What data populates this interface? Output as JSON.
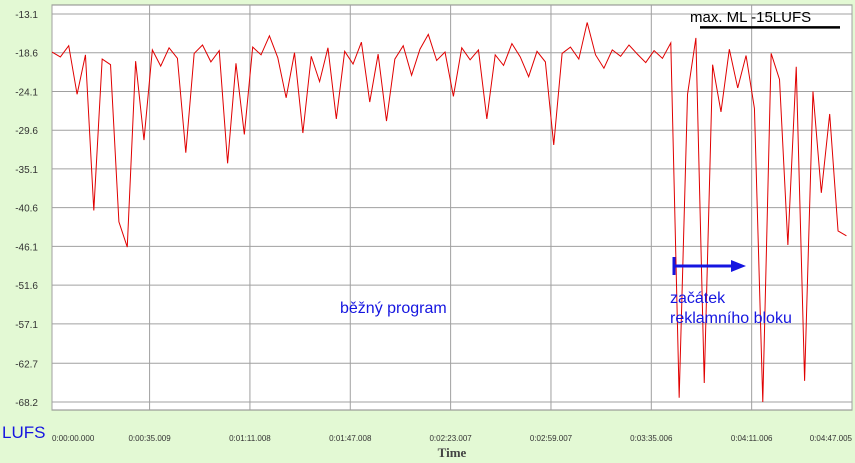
{
  "chart_data": {
    "type": "line",
    "title": "max. ML -15LUFS",
    "x_label": "Time",
    "y_label": "LUFS",
    "max_level": -15,
    "annotations": [
      "běžný program",
      "začátek",
      "reklamního bloku"
    ],
    "x": [
      0,
      3,
      6,
      9,
      12,
      15,
      18,
      21,
      24,
      27,
      30,
      33,
      36,
      39,
      42,
      45,
      48,
      51,
      54,
      57,
      60,
      63,
      66,
      69,
      72,
      75,
      78,
      81,
      84,
      87,
      90,
      93,
      96,
      99,
      102,
      105,
      108,
      111,
      114,
      117,
      120,
      123,
      126,
      129,
      132,
      135,
      138,
      141,
      144,
      147,
      150,
      153,
      156,
      159,
      162,
      165,
      168,
      171,
      174,
      177,
      180,
      183,
      186,
      189,
      192,
      195,
      198,
      201,
      204,
      207,
      210,
      213,
      216,
      219,
      222,
      225,
      228,
      231,
      234,
      237,
      240,
      243,
      246,
      249,
      252,
      255,
      258,
      261,
      264,
      267,
      270,
      273,
      276,
      279,
      282,
      285
    ],
    "series": [
      {
        "name": "LUFS",
        "color": "#e00000",
        "values": [
          -18.5,
          -19.2,
          -17.6,
          -24.5,
          -18.9,
          -41.0,
          -19.5,
          -20.3,
          -42.6,
          -46.2,
          -19.8,
          -31.0,
          -18.2,
          -20.5,
          -17.9,
          -19.4,
          -32.8,
          -18.7,
          -17.5,
          -19.9,
          -18.3,
          -34.3,
          -20.1,
          -30.2,
          -17.8,
          -18.9,
          -16.2,
          -19.3,
          -25.0,
          -18.6,
          -30.0,
          -19.1,
          -22.7,
          -17.9,
          -28.0,
          -18.4,
          -20.2,
          -17.1,
          -25.6,
          -18.8,
          -28.3,
          -19.5,
          -17.6,
          -21.8,
          -18.1,
          -16.0,
          -19.7,
          -18.5,
          -24.8,
          -17.9,
          -19.6,
          -18.2,
          -28.0,
          -18.9,
          -20.4,
          -17.3,
          -19.2,
          -22.0,
          -18.4,
          -19.9,
          -31.7,
          -18.7,
          -17.8,
          -19.5,
          -14.3,
          -18.9,
          -20.8,
          -18.2,
          -19.1,
          -17.5,
          -18.8,
          -20.0,
          -18.3,
          -19.4,
          -17.2,
          -67.6,
          -24.5,
          -16.5,
          -65.5,
          -20.3,
          -27.0,
          -18.1,
          -23.6,
          -19.0,
          -26.5,
          -68.2,
          -18.7,
          -22.4,
          -45.9,
          -20.6,
          -65.2,
          -24.1,
          -38.5,
          -27.3,
          -43.9,
          -44.6
        ]
      }
    ],
    "xlim": [
      0,
      287.005
    ],
    "xticks": [
      {
        "value": 0,
        "label": "0:00:00.000"
      },
      {
        "value": 35.009,
        "label": "0:00:35.009"
      },
      {
        "value": 71.008,
        "label": "0:01:11.008"
      },
      {
        "value": 107.008,
        "label": "0:01:47.008"
      },
      {
        "value": 143.007,
        "label": "0:02:23.007"
      },
      {
        "value": 179.007,
        "label": "0:02:59.007"
      },
      {
        "value": 215.006,
        "label": "0:03:35.006"
      },
      {
        "value": 251.006,
        "label": "0:04:11.006"
      },
      {
        "value": 287.005,
        "label": "0:04:47.005"
      }
    ],
    "ylim": [
      -68.2,
      -13.1
    ],
    "yticks": [
      -13.1,
      -18.6,
      -24.1,
      -29.6,
      -35.1,
      -40.6,
      -46.1,
      -51.6,
      -57.1,
      -62.7,
      -68.2
    ],
    "grid": true
  }
}
